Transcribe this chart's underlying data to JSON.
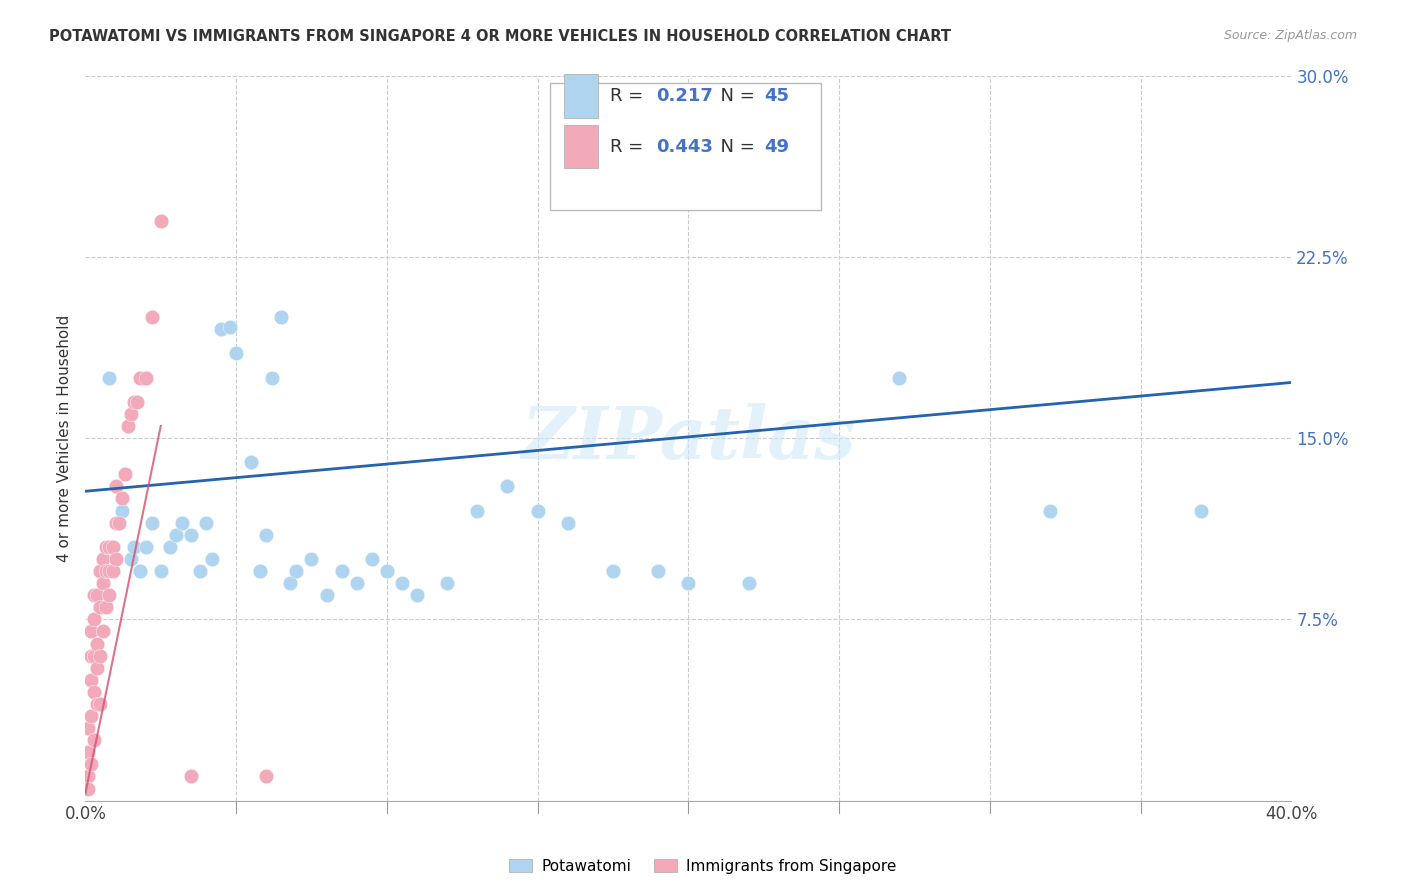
{
  "title": "POTAWATOMI VS IMMIGRANTS FROM SINGAPORE 4 OR MORE VEHICLES IN HOUSEHOLD CORRELATION CHART",
  "source": "Source: ZipAtlas.com",
  "ylabel": "4 or more Vehicles in Household",
  "xlim": [
    0.0,
    0.4
  ],
  "ylim": [
    0.0,
    0.3
  ],
  "xtick_positions": [
    0.0,
    0.05,
    0.1,
    0.15,
    0.2,
    0.25,
    0.3,
    0.35,
    0.4
  ],
  "xtick_labels": [
    "0.0%",
    "",
    "",
    "",
    "",
    "",
    "",
    "",
    "40.0%"
  ],
  "ytick_positions": [
    0.0,
    0.075,
    0.15,
    0.225,
    0.3
  ],
  "ytick_labels": [
    "",
    "7.5%",
    "15.0%",
    "22.5%",
    "30.0%"
  ],
  "blue_R": 0.217,
  "blue_N": 45,
  "pink_R": 0.443,
  "pink_N": 49,
  "blue_color": "#AED4F0",
  "pink_color": "#F2AABB",
  "blue_line_color": "#2563AE",
  "pink_line_color": "#D45070",
  "watermark": "ZIPatlas",
  "blue_scatter_x": [
    0.008,
    0.012,
    0.015,
    0.016,
    0.018,
    0.02,
    0.022,
    0.025,
    0.028,
    0.03,
    0.032,
    0.035,
    0.038,
    0.04,
    0.042,
    0.045,
    0.048,
    0.05,
    0.055,
    0.058,
    0.06,
    0.062,
    0.065,
    0.068,
    0.07,
    0.075,
    0.08,
    0.085,
    0.09,
    0.095,
    0.1,
    0.105,
    0.11,
    0.12,
    0.13,
    0.14,
    0.15,
    0.16,
    0.175,
    0.19,
    0.2,
    0.22,
    0.27,
    0.32,
    0.37
  ],
  "blue_scatter_y": [
    0.175,
    0.12,
    0.1,
    0.105,
    0.095,
    0.105,
    0.115,
    0.095,
    0.105,
    0.11,
    0.115,
    0.11,
    0.095,
    0.115,
    0.1,
    0.195,
    0.196,
    0.185,
    0.14,
    0.095,
    0.11,
    0.175,
    0.2,
    0.09,
    0.095,
    0.1,
    0.085,
    0.095,
    0.09,
    0.1,
    0.095,
    0.09,
    0.085,
    0.09,
    0.12,
    0.13,
    0.12,
    0.115,
    0.095,
    0.095,
    0.09,
    0.09,
    0.175,
    0.12,
    0.12
  ],
  "pink_scatter_x": [
    0.001,
    0.001,
    0.001,
    0.001,
    0.002,
    0.002,
    0.002,
    0.002,
    0.002,
    0.003,
    0.003,
    0.003,
    0.003,
    0.003,
    0.004,
    0.004,
    0.004,
    0.004,
    0.005,
    0.005,
    0.005,
    0.005,
    0.006,
    0.006,
    0.006,
    0.007,
    0.007,
    0.007,
    0.008,
    0.008,
    0.008,
    0.009,
    0.009,
    0.01,
    0.01,
    0.01,
    0.011,
    0.012,
    0.013,
    0.014,
    0.015,
    0.016,
    0.017,
    0.018,
    0.02,
    0.022,
    0.025,
    0.035,
    0.06
  ],
  "pink_scatter_y": [
    0.01,
    0.02,
    0.03,
    0.005,
    0.015,
    0.035,
    0.05,
    0.06,
    0.07,
    0.025,
    0.045,
    0.06,
    0.075,
    0.085,
    0.04,
    0.055,
    0.065,
    0.085,
    0.04,
    0.06,
    0.08,
    0.095,
    0.07,
    0.09,
    0.1,
    0.08,
    0.095,
    0.105,
    0.085,
    0.095,
    0.105,
    0.095,
    0.105,
    0.1,
    0.115,
    0.13,
    0.115,
    0.125,
    0.135,
    0.155,
    0.16,
    0.165,
    0.165,
    0.175,
    0.175,
    0.2,
    0.24,
    0.01,
    0.01
  ],
  "blue_line_x": [
    0.0,
    0.4
  ],
  "blue_line_y": [
    0.128,
    0.173
  ],
  "pink_line_x": [
    0.0,
    0.025
  ],
  "pink_line_y": [
    0.003,
    0.155
  ]
}
